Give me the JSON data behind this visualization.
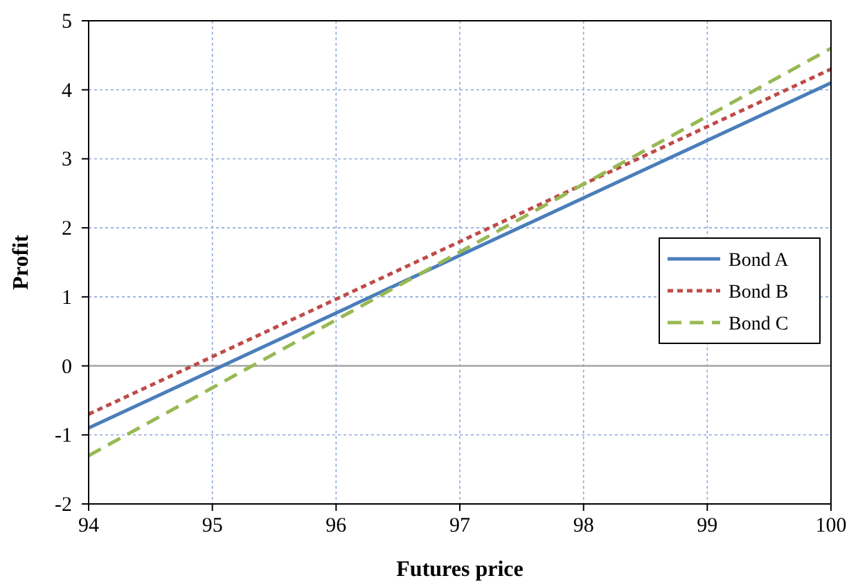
{
  "chart_data": {
    "type": "line",
    "xlabel": "Futures price",
    "ylabel": "Profit",
    "x": [
      94,
      100
    ],
    "series": [
      {
        "name": "Bond A",
        "color": "#4a7ebb",
        "values": [
          -0.9,
          4.1
        ],
        "line_style": "solid"
      },
      {
        "name": "Bond B",
        "color": "#be4b48",
        "values": [
          -0.7,
          4.3
        ],
        "line_style": "dotted"
      },
      {
        "name": "Bond C",
        "color": "#98b954",
        "values": [
          -1.3,
          4.6
        ],
        "line_style": "dashed"
      }
    ],
    "xlim": [
      94,
      100
    ],
    "xticks": [
      94,
      95,
      96,
      97,
      98,
      99,
      100
    ],
    "ylim": [
      -2,
      5
    ],
    "yticks": [
      -2,
      -1,
      0,
      1,
      2,
      3,
      4,
      5
    ],
    "ref_lines": [
      {
        "axis": "y",
        "value": 0,
        "color": "#a6a6a6"
      }
    ],
    "grid": true,
    "legend": "right"
  }
}
